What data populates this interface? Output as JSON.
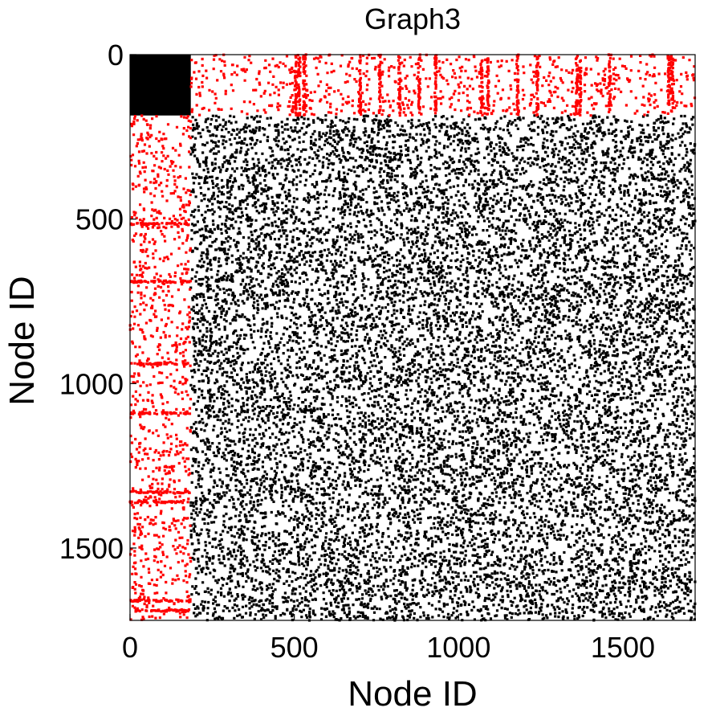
{
  "chart_data": {
    "type": "scatter",
    "subtype": "adjacency-matrix-spy-plot",
    "title": "Graph3",
    "xlabel": "Node ID",
    "ylabel": "Node ID",
    "xlim": [
      0,
      1720
    ],
    "ylim": [
      0,
      1720
    ],
    "y_axis_inverted": true,
    "xticks": [
      0,
      500,
      1000,
      1500
    ],
    "yticks": [
      0,
      500,
      1000,
      1500
    ],
    "xtick_labels": [
      "0",
      "500",
      "1000",
      "1500"
    ],
    "ytick_labels": [
      "0",
      "500",
      "1000",
      "1500"
    ],
    "grid": false,
    "legend": "none",
    "colors": {
      "intra_block": "#000000",
      "cross_block": "#ff0000"
    },
    "series": [
      {
        "color": "#000000",
        "region": "dense block",
        "x_range": [
          0,
          185
        ],
        "y_range": [
          0,
          185
        ],
        "density": "dense"
      },
      {
        "color": "#ff0000",
        "region": "top band",
        "x_range": [
          185,
          1720
        ],
        "y_range": [
          0,
          185
        ],
        "density": "sparse, vertical stripes"
      },
      {
        "color": "#ff0000",
        "region": "left band",
        "x_range": [
          0,
          185
        ],
        "y_range": [
          185,
          1720
        ],
        "density": "sparse, horizontal stripes"
      },
      {
        "color": "#000000",
        "region": "main block",
        "x_range": [
          185,
          1720
        ],
        "y_range": [
          185,
          1720
        ],
        "density": "moderate, uniform"
      }
    ],
    "stripes": {
      "top_band_columns": [
        505,
        515,
        530,
        700,
        760,
        820,
        880,
        930,
        1070,
        1090,
        1180,
        1240,
        1360,
        1370,
        1460,
        1640,
        1650
      ],
      "left_band_rows": [
        515,
        690,
        940,
        1090,
        1330,
        1360,
        1660,
        1690
      ]
    }
  }
}
